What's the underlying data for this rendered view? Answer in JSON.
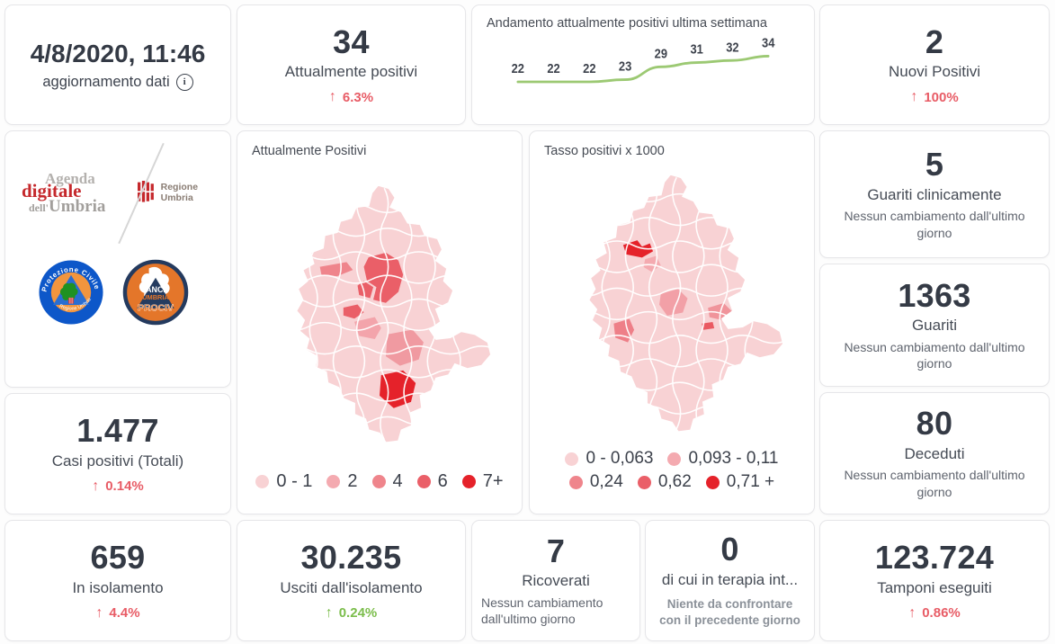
{
  "colors": {
    "accent_red": "#e85c66",
    "accent_green": "#7bbd4b",
    "dark_text": "#343a45",
    "muted_text": "#5f646e",
    "line_green": "#9cc973"
  },
  "legend_colors": [
    "#f8d2d4",
    "#f4aab0",
    "#ef858c",
    "#ea5f68",
    "#e5222a"
  ],
  "icons": {
    "arrow_up": "↑",
    "info": "i"
  },
  "update_card": {
    "date": "4/8/2020, 11:46",
    "label": "aggiornamento dati"
  },
  "stats": {
    "attualmente_positivi": {
      "value": "34",
      "label": "Attualmente positivi",
      "delta": "6.3%"
    },
    "nuovi_positivi": {
      "value": "2",
      "label": "Nuovi Positivi",
      "delta": "100%"
    },
    "guariti_clinicamente": {
      "value": "5",
      "label": "Guariti clinicamente",
      "note": "Nessun cambiamento dall'ultimo giorno"
    },
    "guariti": {
      "value": "1363",
      "label": "Guariti",
      "note": "Nessun cambiamento dall'ultimo giorno"
    },
    "deceduti": {
      "value": "80",
      "label": "Deceduti",
      "note": "Nessun cambiamento dall'ultimo giorno"
    },
    "casi_totali": {
      "value": "1.477",
      "label": "Casi positivi (Totali)",
      "delta": "0.14%"
    },
    "in_isolamento": {
      "value": "659",
      "label": "In isolamento",
      "delta": "4.4%"
    },
    "usciti_isolamento": {
      "value": "30.235",
      "label": "Usciti dall'isolamento",
      "delta": "0.24%"
    },
    "ricoverati": {
      "value": "7",
      "label": "Ricoverati",
      "note": "Nessun cambiamento dall'ultimo giorno"
    },
    "terapia_intensiva": {
      "value": "0",
      "label": "di cui in terapia int...",
      "note": "Niente da confrontare con il precedente giorno"
    },
    "tamponi": {
      "value": "123.724",
      "label": "Tamponi eseguiti",
      "delta": "0.86%"
    }
  },
  "chart_data": {
    "type": "line",
    "title": "Andamento attualmente positivi ultima settimana",
    "values": [
      22,
      22,
      22,
      23,
      29,
      31,
      32,
      34
    ],
    "data_labels": true,
    "line_color": "#9cc973",
    "axes_visible": false
  },
  "maps": [
    {
      "title": "Attualmente Positivi",
      "type": "choropleth",
      "legend": [
        {
          "label": "0 - 1",
          "color": "#f8d2d4"
        },
        {
          "label": "2",
          "color": "#f4aab0"
        },
        {
          "label": "4",
          "color": "#ef858c"
        },
        {
          "label": "6",
          "color": "#ea5f68"
        },
        {
          "label": "7+",
          "color": "#e5222a"
        }
      ]
    },
    {
      "title": "Tasso positivi x 1000",
      "type": "choropleth",
      "legend": [
        {
          "label": "0 - 0,063",
          "color": "#f8d2d4"
        },
        {
          "label": "0,093 - 0,11",
          "color": "#f4aab0"
        },
        {
          "label": "0,24",
          "color": "#ef858c"
        },
        {
          "label": "0,62",
          "color": "#ea5f68"
        },
        {
          "label": "0,71 +",
          "color": "#e5222a"
        }
      ]
    }
  ],
  "logos": {
    "agenda": {
      "line1": "Agenda",
      "line2": "digitale",
      "line3_small": "dell'",
      "line3": "Umbria"
    },
    "regione": {
      "label": "Regione Umbria"
    },
    "protezione": {
      "top": "Protezione Civile",
      "bottom": "Regione Umbria"
    },
    "anci": {
      "line1": "ANCI",
      "line2": "UMBRIA",
      "line3": "PROCIV"
    }
  }
}
